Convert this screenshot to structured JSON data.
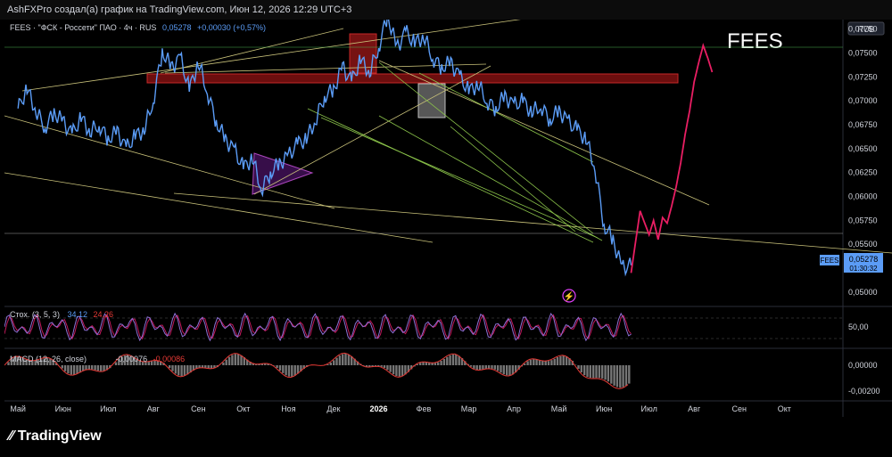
{
  "header": {
    "text": "AshFXPro создал(а) график на TradingView.com, Июн 12, 2026 12:29 UTC+3"
  },
  "legend": {
    "symbol": "FEES · \"ФСК - Россети\" ПАО · 4ч · RUS",
    "price": "0,05278",
    "change": "+0,00030 (+0,57%)"
  },
  "watermark": "FEES",
  "currency": "RUB",
  "price_tag": {
    "symbol": "FEES",
    "price": "0,05278",
    "timer": "01:30:32"
  },
  "footer": {
    "brand": "TradingView"
  },
  "colors": {
    "price_line": "#5b9cf6",
    "projection": "#e91e63",
    "zone": "#b71c1c",
    "stoch": "#c2185b",
    "macd": "#e53935"
  },
  "chart_data": [
    {
      "type": "line",
      "title": "",
      "y_ticks": [
        "0,07750",
        "0,07500",
        "0,07250",
        "0,07000",
        "0,06750",
        "0,06500",
        "0,06250",
        "0,06000",
        "0,05750",
        "0,05500",
        "0,05250",
        "0,05000"
      ],
      "y_tick_values": [
        0.0775,
        0.075,
        0.0725,
        0.07,
        0.0675,
        0.065,
        0.0625,
        0.06,
        0.0575,
        0.055,
        0.0525,
        0.05
      ],
      "ylim": [
        0.0485,
        0.0785
      ],
      "x_ticks": [
        "Май",
        "Июн",
        "Июл",
        "Авг",
        "Сен",
        "Окт",
        "Ноя",
        "Дек",
        "2026",
        "Фев",
        "Мар",
        "Апр",
        "Май",
        "Июн",
        "Июл",
        "Авг",
        "Сен",
        "Окт"
      ],
      "x_tick_values": [
        0,
        1,
        2,
        3,
        4,
        5,
        6,
        7,
        8,
        9,
        10,
        11,
        12,
        13,
        14,
        15,
        16,
        17
      ],
      "xlim": [
        -0.3,
        18.3
      ],
      "series": [
        {
          "x": [
            0,
            0.2,
            0.4,
            0.6,
            0.8,
            1.0,
            1.2,
            1.4,
            1.6,
            1.8,
            2.0,
            2.2,
            2.4,
            2.6,
            2.8,
            3.0,
            3.2,
            3.4,
            3.6,
            3.8,
            4.0,
            4.2,
            4.4,
            4.6,
            4.8,
            5.0,
            5.2,
            5.4,
            5.6,
            5.8,
            6.0,
            6.2,
            6.4,
            6.6,
            6.8,
            7.0,
            7.2,
            7.4,
            7.6,
            7.8,
            8.0,
            8.2,
            8.4,
            8.6,
            8.8,
            9.0,
            9.2,
            9.4,
            9.6,
            9.8,
            10.0,
            10.2,
            10.4,
            10.6,
            10.8,
            11.0,
            11.2,
            11.4,
            11.6,
            11.8,
            12.0,
            12.2,
            12.4,
            12.6,
            12.8,
            13.0,
            13.2,
            13.4,
            13.6
          ],
          "values": [
            0.0692,
            0.0712,
            0.069,
            0.0672,
            0.0688,
            0.0678,
            0.0665,
            0.0682,
            0.0668,
            0.0675,
            0.066,
            0.0668,
            0.065,
            0.0663,
            0.067,
            0.07,
            0.0752,
            0.0735,
            0.0745,
            0.0712,
            0.074,
            0.071,
            0.0678,
            0.066,
            0.0648,
            0.063,
            0.064,
            0.0608,
            0.0625,
            0.0635,
            0.0642,
            0.0655,
            0.066,
            0.068,
            0.0705,
            0.0712,
            0.0735,
            0.072,
            0.0743,
            0.073,
            0.0756,
            0.079,
            0.0755,
            0.0772,
            0.076,
            0.0768,
            0.0745,
            0.0735,
            0.074,
            0.0725,
            0.071,
            0.0718,
            0.07,
            0.0692,
            0.0705,
            0.0695,
            0.07,
            0.0688,
            0.0695,
            0.068,
            0.069,
            0.0678,
            0.067,
            0.066,
            0.063,
            0.057,
            0.0555,
            0.0525,
            0.0528
          ]
        },
        {
          "x": [
            13.6,
            13.8,
            14.0,
            14.1,
            14.2,
            14.3,
            14.4,
            14.5,
            14.6,
            14.7,
            14.8,
            14.9,
            15.0,
            15.1,
            15.2,
            15.3,
            15.4
          ],
          "values": [
            0.052,
            0.0585,
            0.056,
            0.0575,
            0.0555,
            0.0578,
            0.0572,
            0.059,
            0.061,
            0.0635,
            0.0665,
            0.069,
            0.072,
            0.074,
            0.0758,
            0.0745,
            0.073
          ]
        }
      ]
    },
    {
      "type": "line",
      "title": "Стох. (3, 5, 3)",
      "values_shown": [
        "34,12",
        "24,26"
      ],
      "y_ticks": [
        "50,00"
      ],
      "ylim": [
        0,
        100
      ]
    },
    {
      "type": "area",
      "title": "MACD (12, 26, close)",
      "values_shown": [
        "-0,00076",
        "-0,00086"
      ],
      "y_ticks": [
        "0,00000",
        "-0,00200"
      ],
      "ylim": [
        -0.0028,
        0.0016
      ]
    }
  ]
}
